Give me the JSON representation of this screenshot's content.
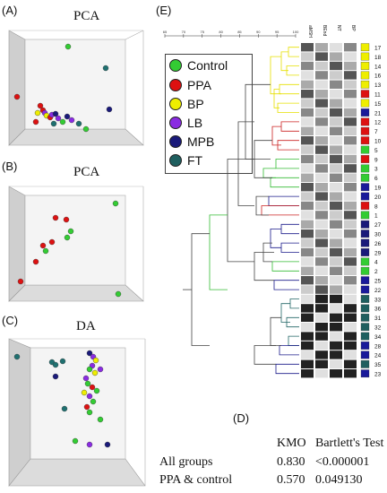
{
  "panels": {
    "a": {
      "label": "(A)",
      "title": "PCA"
    },
    "b": {
      "label": "(B)",
      "title": "PCA"
    },
    "c": {
      "label": "(C)",
      "title": "DA"
    },
    "d": {
      "label": "(D)"
    },
    "e": {
      "label": "(E)"
    }
  },
  "legend": [
    {
      "label": "Control",
      "color": "#33cc33"
    },
    {
      "label": "PPA",
      "color": "#dd1111"
    },
    {
      "label": "BP",
      "color": "#eeee00"
    },
    {
      "label": "LB",
      "color": "#8a2be2"
    },
    {
      "label": "MPB",
      "color": "#1a1a7a"
    },
    {
      "label": "FT",
      "color": "#1f5f5f"
    }
  ],
  "stats_table": {
    "headers": [
      "KMO",
      "Bartlett's Test"
    ],
    "rows": [
      {
        "group": "All groups",
        "kmo": "0.830",
        "bartlett": "<0.000001"
      },
      {
        "group": "PPA & control",
        "kmo": "0.570",
        "bartlett": "0.049130"
      }
    ]
  },
  "dendrogram": {
    "scale_ticks": [
      "65",
      "70",
      "75",
      "80",
      "85",
      "90",
      "95",
      "100"
    ],
    "columns": [
      "aMSH",
      "BEnd",
      "NT",
      "BP"
    ],
    "samples": [
      "17",
      "18",
      "14",
      "16",
      "13",
      "11",
      "15",
      "21",
      "12",
      "7",
      "10",
      "5",
      "9",
      "3",
      "6",
      "19",
      "20",
      "8",
      "1",
      "27",
      "30",
      "26",
      "29",
      "4",
      "2",
      "25",
      "22",
      "33",
      "36",
      "31",
      "32",
      "34",
      "28",
      "24",
      "35",
      "23"
    ],
    "sample_colors": [
      "#eeee00",
      "#eeee00",
      "#eeee00",
      "#eeee00",
      "#eeee00",
      "#dd1111",
      "#eeee00",
      "#1a1a9a",
      "#dd1111",
      "#dd1111",
      "#dd1111",
      "#33cc33",
      "#dd1111",
      "#33cc33",
      "#33cc33",
      "#1a1a9a",
      "#1a1a9a",
      "#dd1111",
      "#33cc33",
      "#1a1a7a",
      "#1a1a7a",
      "#1a1a7a",
      "#1a1a7a",
      "#33cc33",
      "#33cc33",
      "#1a1a9a",
      "#1a1a9a",
      "#1f5f5f",
      "#1f5f5f",
      "#1f5f5f",
      "#1f5f5f",
      "#1f5f5f",
      "#1a1a9a",
      "#1a1a9a",
      "#1f5f5f",
      "#1a1a9a"
    ]
  }
}
